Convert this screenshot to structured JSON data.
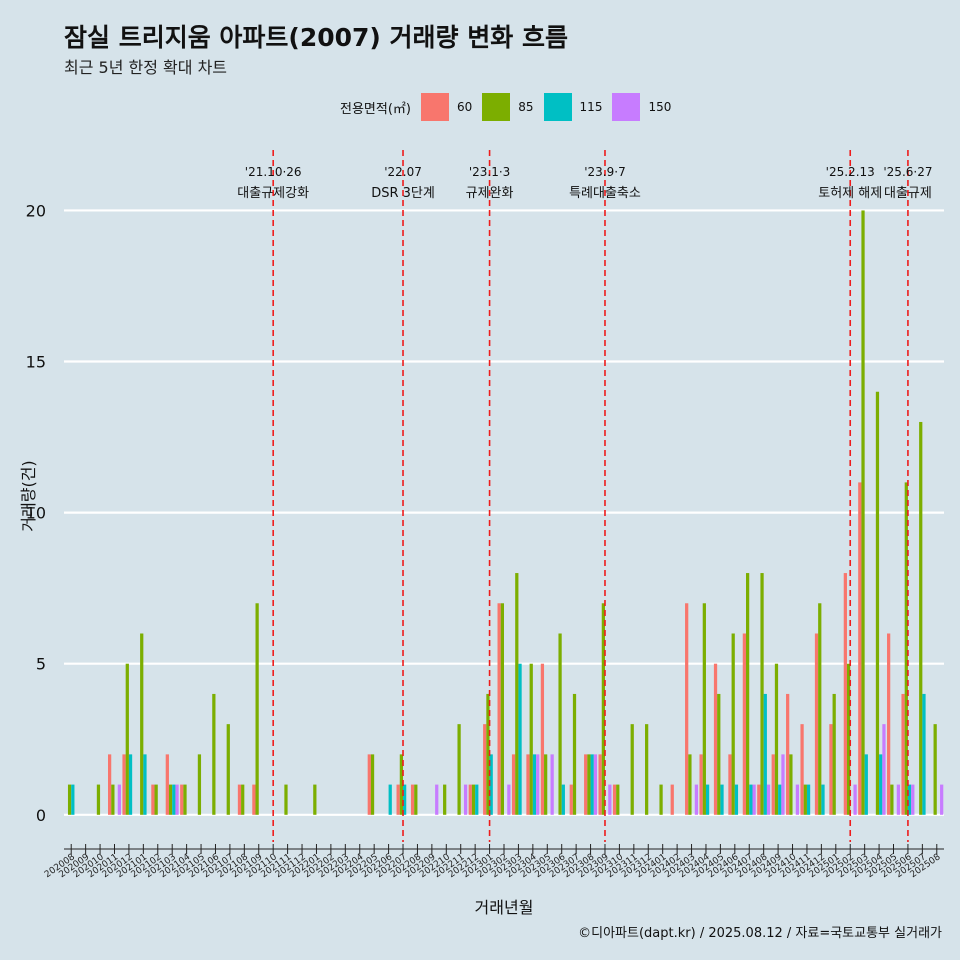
{
  "chart_data": {
    "type": "bar",
    "title": "잠실 트리지움 아파트(2007) 거래량 변화 흐름",
    "subtitle": "최근 5년 한정 확대 차트",
    "xlabel": "거래년월",
    "ylabel": "거래량(건)",
    "ylim": [
      -0.9,
      22
    ],
    "yticks": [
      0,
      5,
      10,
      15,
      20
    ],
    "legend_title": "전용면적(㎡)",
    "legend_position": "top",
    "grid": true,
    "caption": "©디아파트(dapt.kr) / 2025.08.12 / 자료=국토교통부 실거래가",
    "categories": [
      "202008",
      "202009",
      "202010",
      "202011",
      "202012",
      "202101",
      "202102",
      "202103",
      "202104",
      "202105",
      "202106",
      "202107",
      "202108",
      "202109",
      "202110",
      "202111",
      "202112",
      "202201",
      "202202",
      "202203",
      "202204",
      "202205",
      "202206",
      "202207",
      "202208",
      "202209",
      "202210",
      "202211",
      "202212",
      "202301",
      "202302",
      "202303",
      "202304",
      "202305",
      "202306",
      "202307",
      "202308",
      "202309",
      "202310",
      "202311",
      "202312",
      "202401",
      "202402",
      "202403",
      "202404",
      "202405",
      "202406",
      "202407",
      "202408",
      "202409",
      "202410",
      "202411",
      "202412",
      "202501",
      "202502",
      "202503",
      "202504",
      "202505",
      "202506",
      "202507",
      "202508"
    ],
    "series": [
      {
        "name": "60",
        "color": "#f8766d",
        "values": [
          0,
          0,
          0,
          2,
          2,
          0,
          1,
          2,
          1,
          0,
          0,
          0,
          1,
          1,
          0,
          0,
          0,
          0,
          0,
          0,
          0,
          2,
          0,
          1,
          1,
          0,
          0,
          0,
          1,
          3,
          7,
          2,
          2,
          5,
          0,
          1,
          2,
          2,
          1,
          0,
          0,
          0,
          1,
          7,
          2,
          5,
          2,
          6,
          1,
          2,
          4,
          3,
          6,
          3,
          8,
          11,
          0,
          6,
          4,
          0,
          0
        ]
      },
      {
        "name": "85",
        "color": "#7cae00",
        "values": [
          1,
          0,
          1,
          1,
          5,
          6,
          1,
          1,
          1,
          2,
          4,
          3,
          1,
          7,
          0,
          1,
          0,
          1,
          0,
          0,
          0,
          2,
          0,
          2,
          1,
          0,
          1,
          3,
          1,
          4,
          7,
          8,
          5,
          2,
          6,
          4,
          2,
          7,
          1,
          3,
          3,
          1,
          0,
          2,
          7,
          4,
          6,
          8,
          8,
          5,
          2,
          1,
          7,
          4,
          5,
          20,
          14,
          1,
          11,
          13,
          3
        ]
      },
      {
        "name": "115",
        "color": "#00bfc4",
        "values": [
          1,
          0,
          0,
          0,
          2,
          2,
          0,
          1,
          0,
          0,
          0,
          0,
          0,
          0,
          0,
          0,
          0,
          0,
          0,
          0,
          0,
          0,
          1,
          1,
          0,
          0,
          0,
          0,
          1,
          2,
          0,
          5,
          2,
          0,
          1,
          0,
          2,
          0,
          0,
          0,
          0,
          0,
          0,
          0,
          1,
          1,
          1,
          1,
          4,
          1,
          0,
          1,
          1,
          0,
          0,
          2,
          2,
          0,
          1,
          4,
          0
        ]
      },
      {
        "name": "150",
        "color": "#c77cff",
        "values": [
          0,
          0,
          0,
          1,
          0,
          0,
          0,
          1,
          0,
          0,
          0,
          0,
          0,
          0,
          0,
          0,
          0,
          0,
          0,
          0,
          0,
          0,
          0,
          0,
          0,
          1,
          0,
          1,
          0,
          0,
          1,
          0,
          2,
          2,
          0,
          0,
          2,
          1,
          0,
          0,
          0,
          0,
          0,
          1,
          0,
          0,
          0,
          1,
          1,
          2,
          1,
          0,
          0,
          0,
          1,
          0,
          3,
          1,
          1,
          0,
          1
        ]
      }
    ],
    "annotations": [
      {
        "x": "202110",
        "line1": "'21.10·26",
        "line2": "대출규제강화"
      },
      {
        "x": "202207",
        "line1": "'22.07",
        "line2": "DSR 3단계"
      },
      {
        "x": "202301",
        "line1": "'23.1·3",
        "line2": "규제완화"
      },
      {
        "x": "202309",
        "line1": "'23.9·7",
        "line2": "특례대출축소"
      },
      {
        "x": "202502",
        "line1": "'25.2.13",
        "line2": "토허제 해제"
      },
      {
        "x": "202506",
        "line1": "'25.6·27",
        "line2": "대출규제"
      }
    ]
  }
}
